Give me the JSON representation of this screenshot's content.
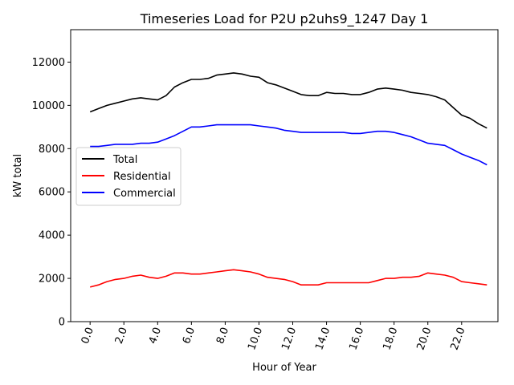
{
  "chart_data": {
    "type": "line",
    "title": "Timeseries Load for P2U p2uhs9_1247  Day 1",
    "xlabel": "Hour of Year",
    "ylabel": "kW total",
    "xlim": [
      -1.15,
      24.15
    ],
    "ylim": [
      0,
      13500
    ],
    "xticks": [
      0,
      2,
      4,
      6,
      8,
      10,
      12,
      14,
      16,
      18,
      20,
      22
    ],
    "xtick_labels": [
      "0.0",
      "2.0",
      "4.0",
      "6.0",
      "8.0",
      "10.0",
      "12.0",
      "14.0",
      "16.0",
      "18.0",
      "20.0",
      "22.0"
    ],
    "yticks": [
      0,
      2000,
      4000,
      6000,
      8000,
      10000,
      12000
    ],
    "ytick_labels": [
      "0",
      "2000",
      "4000",
      "6000",
      "8000",
      "10000",
      "12000"
    ],
    "legend_position": "center-left",
    "x": [
      0,
      0.5,
      1,
      1.5,
      2,
      2.5,
      3,
      3.5,
      4,
      4.5,
      5,
      5.5,
      6,
      6.5,
      7,
      7.5,
      8,
      8.5,
      9,
      9.5,
      10,
      10.5,
      11,
      11.5,
      12,
      12.5,
      13,
      13.5,
      14,
      14.5,
      15,
      15.5,
      16,
      16.5,
      17,
      17.5,
      18,
      18.5,
      19,
      19.5,
      20,
      20.5,
      21,
      21.5,
      22,
      22.5,
      23,
      23.5
    ],
    "series": [
      {
        "name": "Total",
        "color": "#000000",
        "values": [
          9700,
          9850,
          10000,
          10100,
          10200,
          10300,
          10350,
          10300,
          10250,
          10450,
          10850,
          11050,
          11200,
          11200,
          11250,
          11400,
          11450,
          11500,
          11450,
          11350,
          11300,
          11050,
          10950,
          10800,
          10650,
          10500,
          10450,
          10450,
          10600,
          10550,
          10550,
          10500,
          10500,
          10600,
          10750,
          10800,
          10750,
          10700,
          10600,
          10550,
          10500,
          10400,
          10250,
          9900,
          9550,
          9400,
          9150,
          8950
        ]
      },
      {
        "name": "Residential",
        "color": "#ff0000",
        "values": [
          1600,
          1700,
          1850,
          1950,
          2000,
          2100,
          2150,
          2050,
          2000,
          2100,
          2250,
          2250,
          2200,
          2200,
          2250,
          2300,
          2350,
          2400,
          2350,
          2300,
          2200,
          2050,
          2000,
          1950,
          1850,
          1700,
          1700,
          1700,
          1800,
          1800,
          1800,
          1800,
          1800,
          1800,
          1900,
          2000,
          2000,
          2050,
          2050,
          2100,
          2250,
          2200,
          2150,
          2050,
          1850,
          1800,
          1750,
          1700
        ]
      },
      {
        "name": "Commercial",
        "color": "#0000ff",
        "values": [
          8100,
          8100,
          8150,
          8200,
          8200,
          8200,
          8250,
          8250,
          8300,
          8450,
          8600,
          8800,
          9000,
          9000,
          9050,
          9100,
          9100,
          9100,
          9100,
          9100,
          9050,
          9000,
          8950,
          8850,
          8800,
          8750,
          8750,
          8750,
          8750,
          8750,
          8750,
          8700,
          8700,
          8750,
          8800,
          8800,
          8750,
          8650,
          8550,
          8400,
          8250,
          8200,
          8150,
          7950,
          7750,
          7600,
          7450,
          7250
        ]
      }
    ]
  }
}
